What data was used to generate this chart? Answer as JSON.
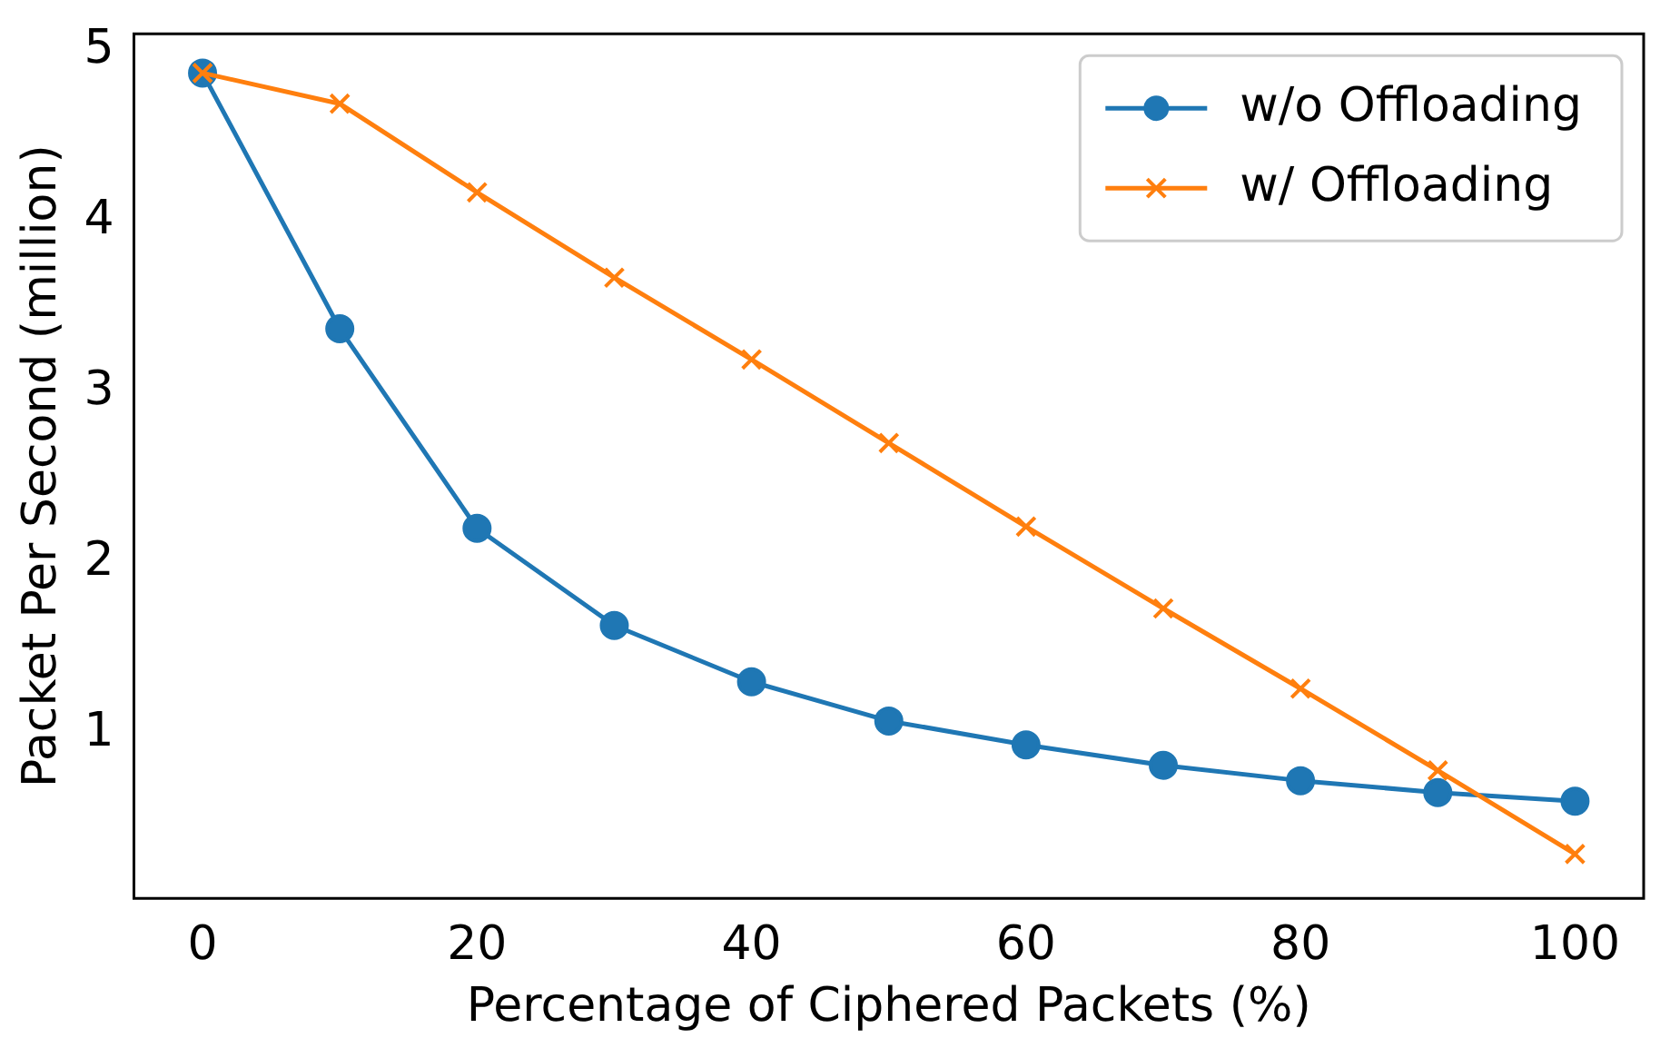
{
  "chart_data": {
    "type": "line",
    "xlabel": "Percentage of Ciphered Packets (%)",
    "ylabel": "Packet Per Second (million)",
    "x": [
      0,
      10,
      20,
      30,
      40,
      50,
      60,
      70,
      80,
      90,
      100
    ],
    "xlim": [
      -5,
      105
    ],
    "xticks": [
      0,
      20,
      40,
      60,
      80,
      100
    ],
    "ylim": [
      0.03,
      5.1
    ],
    "yticks": [
      1,
      2,
      3,
      4,
      5
    ],
    "grid": false,
    "legend": "top right",
    "line_style": "solid",
    "series": [
      {
        "name": "w/o Offloading",
        "color": "#1f77b4",
        "marker": "circle",
        "values": [
          4.87,
          3.37,
          2.2,
          1.63,
          1.3,
          1.07,
          0.93,
          0.81,
          0.72,
          0.65,
          0.6
        ]
      },
      {
        "name": "w/ Offloading",
        "color": "#ff7f0e",
        "marker": "cross",
        "values": [
          4.87,
          4.69,
          4.17,
          3.67,
          3.19,
          2.7,
          2.21,
          1.73,
          1.26,
          0.78,
          0.29
        ]
      }
    ]
  }
}
